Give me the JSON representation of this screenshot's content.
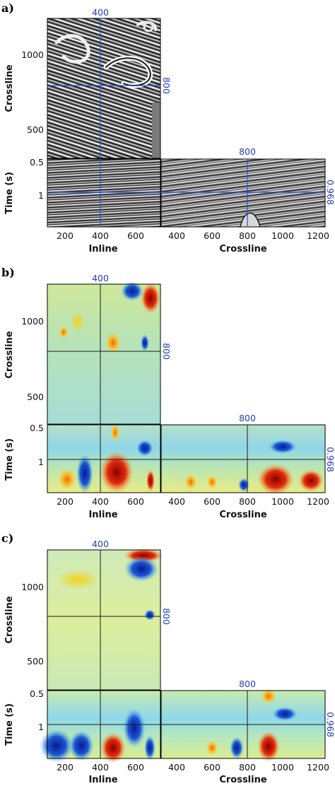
{
  "chart_data": [
    {
      "panel": "a)",
      "type": "heatmap",
      "style": "grayscale-seismic",
      "xlabel_left": "Inline",
      "xlabel_right": "Crossline",
      "ylabel_top": "Crossline",
      "ylabel_bottom": "Time (s)",
      "inline_ticks": [
        "200",
        "400",
        "600"
      ],
      "crossline_ticks": [
        "400",
        "600",
        "800",
        "1000",
        "1200"
      ],
      "crossline_axis_ticks": [
        "500",
        "1000"
      ],
      "time_ticks": [
        "0.5",
        "1"
      ],
      "slice_inline": "400",
      "slice_crossline": "800",
      "slice_time": "0.968"
    },
    {
      "panel": "b)",
      "type": "heatmap",
      "style": "jet-colormap",
      "xlabel_left": "Inline",
      "xlabel_right": "Crossline",
      "ylabel_top": "Crossline",
      "ylabel_bottom": "Time (s)",
      "inline_ticks": [
        "200",
        "400",
        "600"
      ],
      "crossline_ticks": [
        "400",
        "600",
        "800",
        "1000",
        "1200"
      ],
      "crossline_axis_ticks": [
        "500",
        "1000"
      ],
      "time_ticks": [
        "0.5",
        "1"
      ],
      "slice_inline": "400",
      "slice_crossline": "800",
      "slice_time": "0.968"
    },
    {
      "panel": "c)",
      "type": "heatmap",
      "style": "jet-colormap",
      "xlabel_left": "Inline",
      "xlabel_right": "Crossline",
      "ylabel_top": "Crossline",
      "ylabel_bottom": "Time (s)",
      "inline_ticks": [
        "200",
        "400",
        "600"
      ],
      "crossline_ticks": [
        "400",
        "600",
        "800",
        "1000",
        "1200"
      ],
      "crossline_axis_ticks": [
        "500",
        "1000"
      ],
      "time_ticks": [
        "0.5",
        "1"
      ],
      "slice_inline": "400",
      "slice_crossline": "800",
      "slice_time": "0.968"
    }
  ]
}
